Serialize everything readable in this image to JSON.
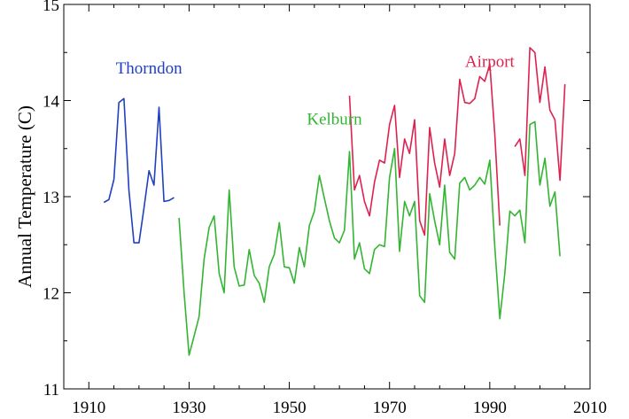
{
  "chart_data": {
    "type": "line",
    "title": "",
    "xlabel": "",
    "ylabel": "Annual Temperature (C)",
    "xlim": [
      1905,
      2010
    ],
    "ylim": [
      11,
      15
    ],
    "xticks": [
      1910,
      1930,
      1950,
      1970,
      1990,
      2010
    ],
    "yticks": [
      11,
      12,
      13,
      14,
      15
    ],
    "grid": false,
    "legend": "inline-labels",
    "series": [
      {
        "name": "Thorndon",
        "color": "#2040c0",
        "x": [
          1913,
          1914,
          1915,
          1916,
          1917,
          1918,
          1919,
          1920,
          1921,
          1922,
          1923,
          1924,
          1925,
          1926,
          1927
        ],
        "y": [
          12.94,
          12.97,
          13.18,
          13.98,
          14.02,
          13.07,
          12.52,
          12.52,
          12.88,
          13.27,
          13.12,
          13.93,
          12.95,
          12.96,
          12.99
        ]
      },
      {
        "name": "Kelburn",
        "color": "#33b533",
        "x": [
          1928,
          1929,
          1930,
          1931,
          1932,
          1933,
          1934,
          1935,
          1936,
          1937,
          1938,
          1939,
          1940,
          1941,
          1942,
          1943,
          1944,
          1945,
          1946,
          1947,
          1948,
          1949,
          1950,
          1951,
          1952,
          1953,
          1954,
          1955,
          1956,
          1957,
          1958,
          1959,
          1960,
          1961,
          1962,
          1963,
          1964,
          1965,
          1966,
          1967,
          1968,
          1969,
          1970,
          1971,
          1972,
          1973,
          1974,
          1975,
          1976,
          1977,
          1978,
          1979,
          1980,
          1981,
          1982,
          1983,
          1984,
          1985,
          1986,
          1987,
          1988,
          1989,
          1990,
          1991,
          1992,
          1993,
          1994,
          1995,
          1996,
          1997,
          1998,
          1999,
          2000,
          2001,
          2002,
          2003,
          2004
        ],
        "y": [
          12.78,
          12.0,
          11.35,
          11.55,
          11.75,
          12.35,
          12.68,
          12.8,
          12.2,
          12.0,
          13.07,
          12.27,
          12.07,
          12.08,
          12.45,
          12.18,
          12.1,
          11.9,
          12.27,
          12.4,
          12.73,
          12.27,
          12.26,
          12.1,
          12.47,
          12.27,
          12.7,
          12.85,
          13.22,
          12.98,
          12.75,
          12.57,
          12.52,
          12.65,
          13.47,
          12.35,
          12.52,
          12.25,
          12.2,
          12.45,
          12.5,
          12.48,
          13.2,
          13.5,
          12.43,
          12.95,
          12.8,
          12.95,
          11.97,
          11.9,
          13.03,
          12.75,
          12.5,
          13.12,
          12.42,
          12.35,
          13.14,
          13.2,
          13.07,
          13.12,
          13.2,
          13.13,
          13.38,
          12.48,
          11.73,
          12.2,
          12.85,
          12.8,
          12.86,
          12.52,
          13.75,
          13.78,
          13.12,
          13.4,
          12.9,
          13.05,
          12.38
        ]
      },
      {
        "name": "Airport",
        "color": "#dd2250",
        "x": [
          1962,
          1963,
          1964,
          1965,
          1966,
          1967,
          1968,
          1969,
          1970,
          1971,
          1972,
          1973,
          1974,
          1975,
          1976,
          1977,
          1978,
          1979,
          1980,
          1981,
          1982,
          1983,
          1984,
          1985,
          1986,
          1987,
          1988,
          1989,
          1990,
          1991,
          1992,
          null,
          1995,
          1996,
          1997,
          1998,
          1999,
          2000,
          2001,
          2002,
          2003,
          2004,
          2005
        ],
        "y": [
          14.05,
          13.07,
          13.22,
          12.95,
          12.8,
          13.15,
          13.38,
          13.35,
          13.75,
          13.95,
          13.2,
          13.6,
          13.45,
          13.8,
          12.75,
          12.6,
          13.72,
          13.35,
          13.1,
          13.6,
          13.22,
          13.45,
          14.22,
          13.98,
          13.97,
          14.02,
          14.25,
          14.2,
          14.38,
          13.65,
          12.7,
          null,
          13.52,
          13.6,
          13.22,
          14.55,
          14.5,
          13.98,
          14.35,
          13.9,
          13.8,
          13.17,
          14.17
        ]
      }
    ]
  }
}
